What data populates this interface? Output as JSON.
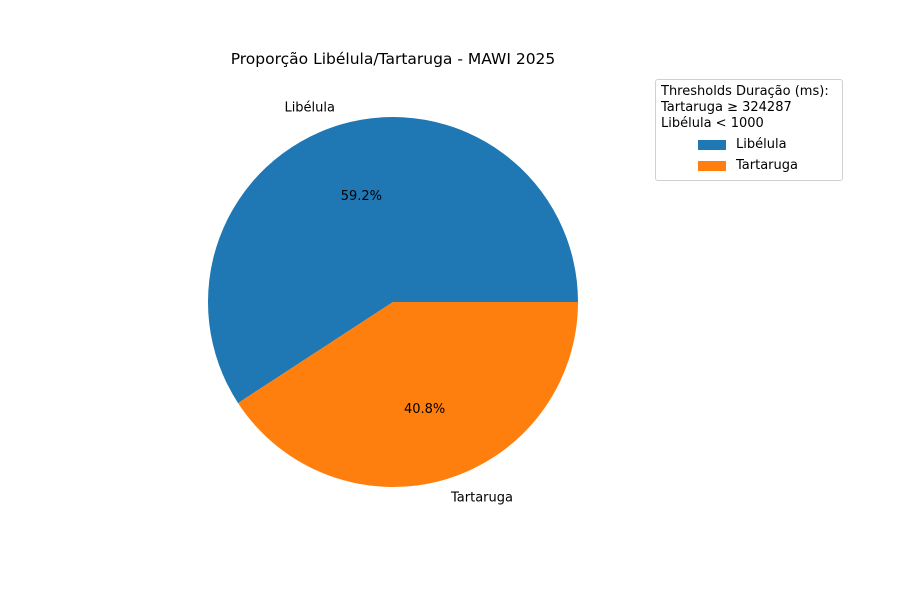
{
  "chart_data": {
    "type": "pie",
    "title": "Proporção Libélula/Tartaruga - MAWI 2025",
    "slices": [
      {
        "label": "Libélula",
        "value": 59.2,
        "pct_label": "59.2%",
        "color": "#1f77b4"
      },
      {
        "label": "Tartaruga",
        "value": 40.8,
        "pct_label": "40.8%",
        "color": "#ff7f0e"
      }
    ],
    "start_angle_deg": 0,
    "direction": "counterclockwise",
    "legend": {
      "placement": "upper-right, outside plot",
      "title_lines": [
        "Thresholds Duração (ms):",
        "Tartaruga ≥ 324287",
        "Libélula < 1000"
      ],
      "entries": [
        "Libélula",
        "Tartaruga"
      ]
    }
  }
}
